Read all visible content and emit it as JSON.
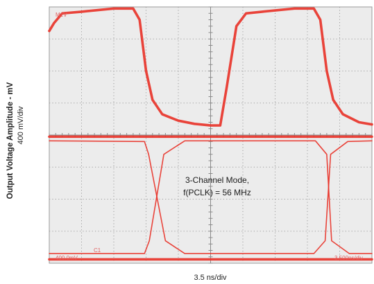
{
  "chart_data": {
    "type": "line",
    "title": "",
    "ylabel": "Output Voltage Amplitude - mV",
    "ylabel_scale": "400 mV/div",
    "xlabel": "3.5 ns/div",
    "annotation_line1": "3-Channel Mode,",
    "annotation_line2": "f(PCLK) = 56 MHz",
    "x_divisions": 10,
    "y_divisions": 8,
    "grid": true,
    "trace_color": "#e8342a",
    "screen_labels": {
      "top_left": "M1V",
      "bottom_left": "400.0mV",
      "bottom_right": "3.500ns/div",
      "ch_marker": "C1"
    },
    "series": [
      {
        "x": [
          0,
          0.15,
          0.4,
          1.0,
          2.0,
          2.6,
          2.8,
          3.0,
          3.2,
          3.5,
          4.0,
          4.5,
          5.0,
          5.3,
          5.5,
          5.8,
          6.1,
          6.6,
          7.6,
          8.2,
          8.4,
          8.6,
          8.8,
          9.1,
          9.6,
          10.0
        ],
        "y": [
          7.25,
          7.5,
          7.8,
          7.85,
          7.95,
          7.95,
          7.6,
          6.0,
          5.1,
          4.65,
          4.45,
          4.35,
          4.3,
          4.3,
          5.5,
          7.4,
          7.8,
          7.85,
          7.95,
          7.95,
          7.6,
          6.0,
          5.1,
          4.65,
          4.4,
          4.33
        ]
      },
      {
        "x": [
          0,
          3.0,
          3.5,
          4.0,
          8.0,
          8.6,
          8.8,
          10.0
        ],
        "y": [
          3.95,
          3.95,
          3.95,
          3.95,
          3.95,
          3.95,
          3.95,
          3.95
        ]
      },
      {
        "x": [
          0,
          2.95,
          3.08,
          3.6,
          4.2,
          8.2,
          8.55,
          8.72,
          9.25,
          10.0
        ],
        "y": [
          3.82,
          3.8,
          3.4,
          0.7,
          0.3,
          0.3,
          0.7,
          3.4,
          3.8,
          3.82
        ]
      },
      {
        "x": [
          0,
          2.95,
          3.1,
          3.55,
          4.2,
          8.25,
          8.6,
          8.75,
          9.3,
          10.0
        ],
        "y": [
          0.3,
          0.3,
          0.7,
          3.4,
          3.82,
          3.82,
          3.4,
          0.7,
          0.3,
          0.3
        ]
      },
      {
        "x": [
          0,
          10.0
        ],
        "y": [
          0.12,
          0.12
        ]
      }
    ]
  }
}
